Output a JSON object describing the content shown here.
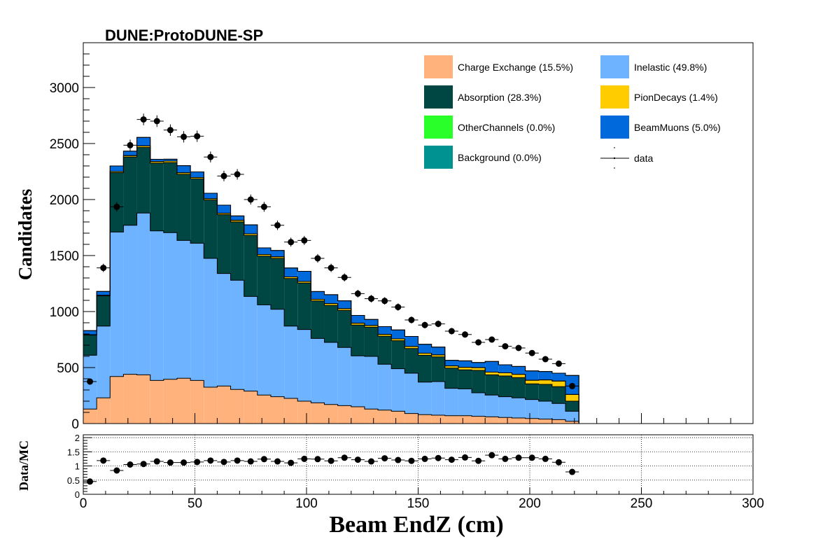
{
  "chart_data": [
    {
      "type": "bar",
      "stacked": true,
      "title": "DUNE:ProtoDUNE-SP",
      "xlabel": "",
      "ylabel": "Candidates",
      "xlim": [
        0,
        300
      ],
      "ylim": [
        0,
        3400
      ],
      "yticks": [
        0,
        500,
        1000,
        1500,
        2000,
        2500,
        3000
      ],
      "x_bin_width": 6,
      "x": [
        3,
        9,
        15,
        21,
        27,
        33,
        39,
        45,
        51,
        57,
        63,
        69,
        75,
        81,
        87,
        93,
        99,
        105,
        111,
        117,
        123,
        129,
        135,
        141,
        147,
        153,
        159,
        165,
        171,
        177,
        183,
        189,
        195,
        201,
        207,
        213,
        219
      ],
      "series": [
        {
          "name": "Charge Exchange (15.5%)",
          "color": "#ffb27c",
          "values": [
            130,
            230,
            420,
            440,
            435,
            385,
            395,
            405,
            385,
            325,
            335,
            305,
            290,
            255,
            240,
            225,
            200,
            185,
            170,
            160,
            150,
            130,
            120,
            110,
            90,
            80,
            75,
            70,
            70,
            65,
            60,
            55,
            50,
            45,
            40,
            35,
            20
          ]
        },
        {
          "name": "Inelastic (49.8%)",
          "color": "#6db3ff",
          "values": [
            480,
            640,
            1290,
            1330,
            1445,
            1335,
            1310,
            1230,
            1225,
            1150,
            1005,
            975,
            845,
            805,
            780,
            645,
            640,
            575,
            555,
            520,
            455,
            470,
            410,
            380,
            360,
            290,
            300,
            245,
            240,
            210,
            195,
            185,
            180,
            170,
            160,
            145,
            90
          ]
        },
        {
          "name": "Absorption (28.3%)",
          "color": "#004743",
          "values": [
            180,
            270,
            530,
            610,
            585,
            605,
            625,
            590,
            575,
            520,
            525,
            520,
            545,
            435,
            455,
            425,
            415,
            335,
            330,
            330,
            275,
            260,
            250,
            250,
            220,
            240,
            220,
            180,
            170,
            200,
            180,
            185,
            180,
            140,
            150,
            150,
            90
          ]
        },
        {
          "name": "PionDecays (1.4%)",
          "color": "#ffcc00",
          "values": [
            4,
            5,
            10,
            12,
            14,
            14,
            14,
            14,
            12,
            12,
            12,
            14,
            14,
            14,
            14,
            14,
            14,
            14,
            16,
            16,
            16,
            16,
            16,
            16,
            18,
            18,
            18,
            20,
            22,
            24,
            24,
            28,
            30,
            32,
            40,
            50,
            60
          ]
        },
        {
          "name": "OtherChannels (0.0%)",
          "color": "#29ff29",
          "values": [
            0,
            0,
            0,
            0,
            0,
            0,
            0,
            0,
            0,
            0,
            0,
            0,
            0,
            0,
            0,
            0,
            0,
            0,
            0,
            0,
            0,
            0,
            0,
            0,
            0,
            0,
            0,
            0,
            0,
            0,
            0,
            0,
            0,
            0,
            0,
            0,
            0
          ]
        },
        {
          "name": "BeamMuons (5.0%)",
          "color": "#0069db",
          "values": [
            36,
            35,
            50,
            40,
            76,
            20,
            16,
            63,
            50,
            49,
            73,
            40,
            80,
            60,
            56,
            80,
            90,
            70,
            80,
            70,
            70,
            54,
            70,
            80,
            90,
            80,
            70,
            50,
            58,
            46,
            96,
            72,
            70,
            83,
            75,
            70,
            170
          ]
        },
        {
          "name": "Background (0.0%)",
          "color": "#009191",
          "values": [
            0,
            0,
            0,
            0,
            0,
            0,
            0,
            0,
            0,
            0,
            0,
            0,
            0,
            0,
            0,
            0,
            0,
            0,
            0,
            0,
            0,
            0,
            0,
            0,
            0,
            0,
            0,
            0,
            0,
            0,
            0,
            0,
            0,
            0,
            0,
            0,
            0
          ]
        }
      ],
      "data_points": {
        "name": "data",
        "values": [
          375,
          1390,
          1935,
          2485,
          2715,
          2700,
          2620,
          2560,
          2565,
          2380,
          2210,
          2225,
          2000,
          1935,
          1770,
          1620,
          1635,
          1475,
          1390,
          1305,
          1160,
          1115,
          1095,
          1040,
          925,
          880,
          890,
          825,
          795,
          725,
          750,
          690,
          675,
          630,
          575,
          535,
          335
        ]
      },
      "legend": "top-right, two columns"
    },
    {
      "type": "scatter",
      "title": "",
      "xlabel": "Beam EndZ (cm)",
      "ylabel": "Data/MC",
      "xlim": [
        0,
        300
      ],
      "ylim": [
        0,
        2.1
      ],
      "xticks": [
        0,
        50,
        100,
        150,
        200,
        250,
        300
      ],
      "yticks": [
        0,
        0.5,
        1,
        1.5,
        2
      ],
      "grid": true,
      "x": [
        3,
        9,
        15,
        21,
        27,
        33,
        39,
        45,
        51,
        57,
        63,
        69,
        75,
        81,
        87,
        93,
        99,
        105,
        111,
        117,
        123,
        129,
        135,
        141,
        147,
        153,
        159,
        165,
        171,
        177,
        183,
        189,
        195,
        201,
        207,
        213,
        219
      ],
      "y": [
        0.45,
        1.19,
        0.84,
        1.05,
        1.07,
        1.16,
        1.12,
        1.12,
        1.14,
        1.19,
        1.14,
        1.19,
        1.16,
        1.24,
        1.16,
        1.11,
        1.25,
        1.24,
        1.18,
        1.29,
        1.22,
        1.16,
        1.27,
        1.21,
        1.18,
        1.25,
        1.28,
        1.22,
        1.3,
        1.18,
        1.38,
        1.25,
        1.29,
        1.29,
        1.25,
        1.13,
        0.79
      ]
    }
  ]
}
